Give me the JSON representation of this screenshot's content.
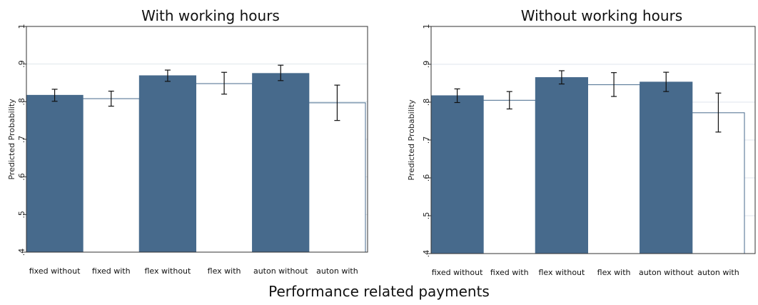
{
  "xlabel": "Performance related payments",
  "chart_data": [
    {
      "type": "bar",
      "title": "With working hours",
      "ylabel": "Predicted Probability",
      "ylim": [
        0.4,
        1.0
      ],
      "yticks": [
        0.4,
        0.5,
        0.6,
        0.7,
        0.8,
        0.9,
        1.0
      ],
      "ytick_labels": [
        ".4",
        ".5",
        ".6",
        ".7",
        ".8",
        ".9",
        "1"
      ],
      "categories": [
        "fixed without",
        "fixed with",
        "flex without",
        "flex with",
        "auton without",
        "auton with"
      ],
      "values": [
        0.817,
        0.808,
        0.869,
        0.848,
        0.875,
        0.797
      ],
      "ci_low": [
        0.801,
        0.788,
        0.854,
        0.82,
        0.856,
        0.75
      ],
      "ci_high": [
        0.833,
        0.828,
        0.884,
        0.878,
        0.897,
        0.844
      ],
      "bar_fills": [
        "#476a8c",
        "#ffffff",
        "#476a8c",
        "#ffffff",
        "#476a8c",
        "#ffffff"
      ],
      "grid": true
    },
    {
      "type": "bar",
      "title": "Without working hours",
      "ylabel": "Predicted Probability",
      "ylim": [
        0.4,
        1.0
      ],
      "yticks": [
        0.4,
        0.5,
        0.6,
        0.7,
        0.8,
        0.9,
        1.0
      ],
      "ytick_labels": [
        ".4",
        ".5",
        ".6",
        ".7",
        ".8",
        ".9",
        "1"
      ],
      "categories": [
        "fixed without",
        "fixed with",
        "flex without",
        "flex with",
        "auton without",
        "auton with"
      ],
      "values": [
        0.817,
        0.805,
        0.865,
        0.846,
        0.853,
        0.772
      ],
      "ci_low": [
        0.799,
        0.782,
        0.848,
        0.815,
        0.828,
        0.721
      ],
      "ci_high": [
        0.835,
        0.828,
        0.883,
        0.878,
        0.879,
        0.824
      ],
      "bar_fills": [
        "#476a8c",
        "#ffffff",
        "#476a8c",
        "#ffffff",
        "#476a8c",
        "#ffffff"
      ],
      "grid": true
    }
  ]
}
